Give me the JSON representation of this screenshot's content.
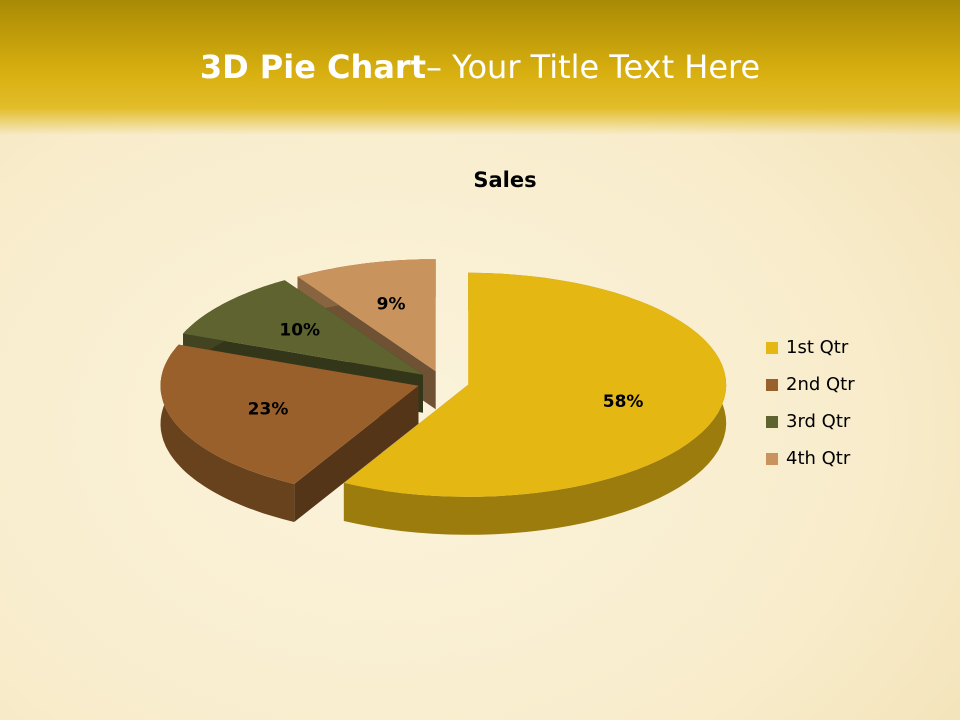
{
  "slide_title": {
    "bold": "3D Pie Chart",
    "rest": "– Your Title Text Here"
  },
  "chart_data": {
    "type": "pie3d",
    "title": "Sales",
    "categories": [
      "1st Qtr",
      "2nd Qtr",
      "3rd Qtr",
      "4th Qtr"
    ],
    "values": [
      58,
      23,
      10,
      9
    ],
    "value_labels": [
      "58%",
      "23%",
      "10%",
      "9%"
    ],
    "colors": [
      "#e4b712",
      "#99602b",
      "#5f6330",
      "#c9935e"
    ],
    "legend": "right"
  }
}
